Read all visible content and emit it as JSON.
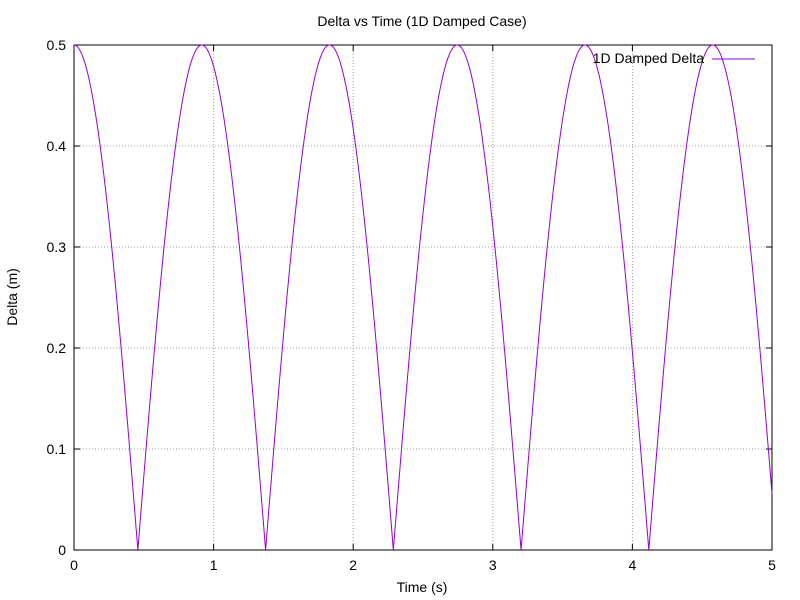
{
  "chart_data": {
    "type": "line",
    "title": "Delta vs Time (1D Damped Case)",
    "xlabel": "Time (s)",
    "ylabel": "Delta (m)",
    "xlim": [
      0,
      5
    ],
    "ylim": [
      0,
      0.5
    ],
    "x_ticks": [
      "0",
      "1",
      "2",
      "3",
      "4",
      "5"
    ],
    "y_ticks": [
      "0",
      "0.1",
      "0.2",
      "0.3",
      "0.4",
      "0.5"
    ],
    "grid": true,
    "legend_position": "top-right",
    "series": [
      {
        "name": "1D Damped Delta",
        "color": "#9400d3",
        "function": "abs(0.5*cos(omega*t))",
        "amplitude": 0.5,
        "period_s": 1.83,
        "t_range": [
          0,
          5
        ],
        "zero_crossings_s": [
          0.46,
          1.37,
          2.29,
          3.2,
          4.12
        ]
      }
    ]
  }
}
